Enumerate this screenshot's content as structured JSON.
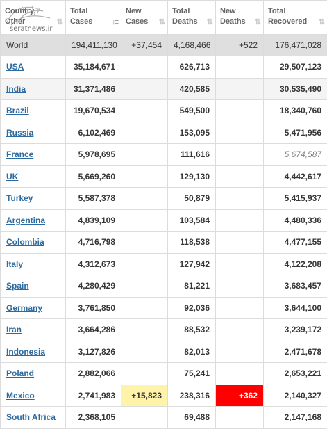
{
  "watermark": {
    "site": "seratnews.ir"
  },
  "columns": [
    {
      "line1": "Country,",
      "line2": "Other",
      "sort": "⇅",
      "active": false
    },
    {
      "line1": "Total",
      "line2": "Cases",
      "sort": "↓≡",
      "active": true
    },
    {
      "line1": "New",
      "line2": "Cases",
      "sort": "⇅",
      "active": false
    },
    {
      "line1": "Total",
      "line2": "Deaths",
      "sort": "⇅",
      "active": false
    },
    {
      "line1": "New",
      "line2": "Deaths",
      "sort": "⇅",
      "active": false
    },
    {
      "line1": "Total",
      "line2": "Recovered",
      "sort": "⇅",
      "active": false
    }
  ],
  "world": {
    "country": "World",
    "total_cases": "194,411,130",
    "new_cases": "+37,454",
    "total_deaths": "4,168,466",
    "new_deaths": "+522",
    "total_recovered": "176,471,028"
  },
  "rows": [
    {
      "country": "USA",
      "total_cases": "35,184,671",
      "new_cases": "",
      "total_deaths": "626,713",
      "new_deaths": "",
      "total_recovered": "29,507,123"
    },
    {
      "country": "India",
      "total_cases": "31,371,486",
      "new_cases": "",
      "total_deaths": "420,585",
      "new_deaths": "",
      "total_recovered": "30,535,490"
    },
    {
      "country": "Brazil",
      "total_cases": "19,670,534",
      "new_cases": "",
      "total_deaths": "549,500",
      "new_deaths": "",
      "total_recovered": "18,340,760"
    },
    {
      "country": "Russia",
      "total_cases": "6,102,469",
      "new_cases": "",
      "total_deaths": "153,095",
      "new_deaths": "",
      "total_recovered": "5,471,956"
    },
    {
      "country": "France",
      "total_cases": "5,978,695",
      "new_cases": "",
      "total_deaths": "111,616",
      "new_deaths": "",
      "total_recovered": "5,674,587"
    },
    {
      "country": "UK",
      "total_cases": "5,669,260",
      "new_cases": "",
      "total_deaths": "129,130",
      "new_deaths": "",
      "total_recovered": "4,442,617"
    },
    {
      "country": "Turkey",
      "total_cases": "5,587,378",
      "new_cases": "",
      "total_deaths": "50,879",
      "new_deaths": "",
      "total_recovered": "5,415,937"
    },
    {
      "country": "Argentina",
      "total_cases": "4,839,109",
      "new_cases": "",
      "total_deaths": "103,584",
      "new_deaths": "",
      "total_recovered": "4,480,336"
    },
    {
      "country": "Colombia",
      "total_cases": "4,716,798",
      "new_cases": "",
      "total_deaths": "118,538",
      "new_deaths": "",
      "total_recovered": "4,477,155"
    },
    {
      "country": "Italy",
      "total_cases": "4,312,673",
      "new_cases": "",
      "total_deaths": "127,942",
      "new_deaths": "",
      "total_recovered": "4,122,208"
    },
    {
      "country": "Spain",
      "total_cases": "4,280,429",
      "new_cases": "",
      "total_deaths": "81,221",
      "new_deaths": "",
      "total_recovered": "3,683,457"
    },
    {
      "country": "Germany",
      "total_cases": "3,761,850",
      "new_cases": "",
      "total_deaths": "92,036",
      "new_deaths": "",
      "total_recovered": "3,644,100"
    },
    {
      "country": "Iran",
      "total_cases": "3,664,286",
      "new_cases": "",
      "total_deaths": "88,532",
      "new_deaths": "",
      "total_recovered": "3,239,172"
    },
    {
      "country": "Indonesia",
      "total_cases": "3,127,826",
      "new_cases": "",
      "total_deaths": "82,013",
      "new_deaths": "",
      "total_recovered": "2,471,678"
    },
    {
      "country": "Poland",
      "total_cases": "2,882,066",
      "new_cases": "",
      "total_deaths": "75,241",
      "new_deaths": "",
      "total_recovered": "2,653,221"
    },
    {
      "country": "Mexico",
      "total_cases": "2,741,983",
      "new_cases": "+15,823",
      "total_deaths": "238,316",
      "new_deaths": "+362",
      "total_recovered": "2,140,327"
    },
    {
      "country": "South Africa",
      "total_cases": "2,368,105",
      "new_cases": "",
      "total_deaths": "69,488",
      "new_deaths": "",
      "total_recovered": "2,147,168"
    }
  ],
  "colors": {
    "link": "#2c6aa0",
    "world_row": "#dfdfdf",
    "alt_row": "#f4f4f4",
    "new_cases_highlight": "#fff3a9",
    "new_deaths_highlight": "#ff0000"
  }
}
